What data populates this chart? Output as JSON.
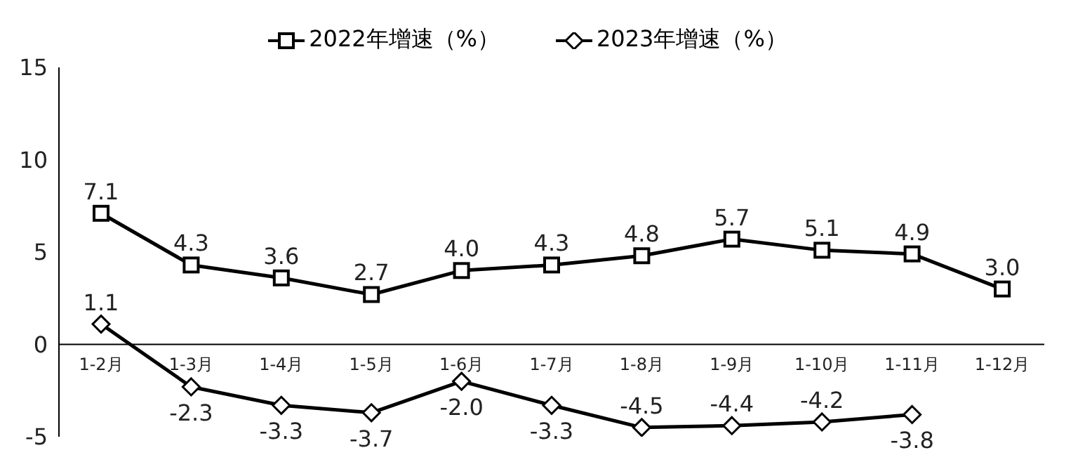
{
  "chart_data": {
    "type": "line",
    "categories": [
      "1-2月",
      "1-3月",
      "1-4月",
      "1-5月",
      "1-6月",
      "1-7月",
      "1-8月",
      "1-9月",
      "1-10月",
      "1-11月",
      "1-12月"
    ],
    "series": [
      {
        "name": "2022年增速（%）",
        "color": "#000000",
        "marker": "square",
        "values": [
          7.1,
          4.3,
          3.6,
          2.7,
          4.0,
          4.3,
          4.8,
          5.7,
          5.1,
          4.9,
          3.0
        ],
        "value_labels": [
          "7.1",
          "4.3",
          "3.6",
          "2.7",
          "4.0",
          "4.3",
          "4.8",
          "5.7",
          "5.1",
          "4.9",
          "3.0"
        ]
      },
      {
        "name": "2023年增速（%）",
        "color": "#000000",
        "marker": "diamond",
        "values": [
          1.1,
          -2.3,
          -3.3,
          -3.7,
          -2.0,
          -3.3,
          -4.5,
          -4.4,
          -4.2,
          -3.8,
          null
        ],
        "value_labels": [
          "1.1",
          "-2.3",
          "-3.3",
          "-3.7",
          "-2.0",
          "-3.3",
          "-4.5",
          "-4.4",
          "-4.2",
          "-3.8",
          null
        ]
      }
    ],
    "ylim": [
      -5,
      15
    ],
    "yticks": [
      -5,
      0,
      5,
      10,
      15
    ],
    "legend": "top"
  }
}
